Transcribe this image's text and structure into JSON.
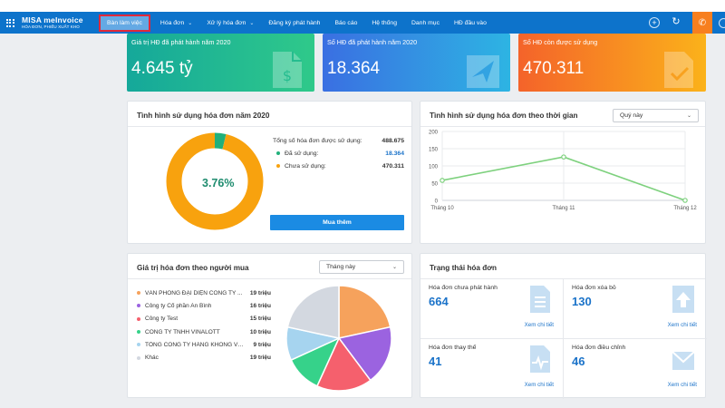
{
  "brand": {
    "name": "MISA meInvoice",
    "tagline": "HÓA ĐƠN, PHIẾU XUẤT KHO"
  },
  "nav": {
    "items": [
      {
        "label": "Bàn làm việc",
        "active": true,
        "dropdown": false
      },
      {
        "label": "Hóa đơn",
        "dropdown": true
      },
      {
        "label": "Xử lý hóa đơn",
        "dropdown": true
      },
      {
        "label": "Đăng ký phát hành",
        "dropdown": false
      },
      {
        "label": "Báo cáo",
        "dropdown": false
      },
      {
        "label": "Hệ thống",
        "dropdown": false
      },
      {
        "label": "Danh mục",
        "dropdown": false
      },
      {
        "label": "HĐ đầu vào",
        "dropdown": false
      }
    ],
    "right_icons": [
      "plus-circle-icon",
      "refresh-icon",
      "phone-icon",
      "clock-icon"
    ]
  },
  "stat_cards": [
    {
      "label": "Giá trị HĐ đã phát hành năm 2020",
      "value": "4.645 tỷ",
      "icon": "invoice-money-icon",
      "color": "#15a89a"
    },
    {
      "label": "Số HĐ đã phát hành năm 2020",
      "value": "18.364",
      "icon": "send-icon",
      "color": "#3a6fe2"
    },
    {
      "label": "Số HĐ còn được sử dụng",
      "value": "470.311",
      "icon": "document-check-icon",
      "color": "#f4632a"
    }
  ],
  "usage_panel": {
    "title": "Tình hình sử dụng hóa đơn năm 2020",
    "percent_label": "3.76%",
    "total_label": "Tổng số hóa đơn được sử dụng:",
    "total_value": "488.675",
    "used_label": "Đã sử dụng:",
    "used_value": "18.364",
    "unused_label": "Chưa sử dụng:",
    "unused_value": "470.311",
    "buy_button": "Mua thêm",
    "colors": {
      "used": "#21b07b",
      "unused": "#f8a20e"
    }
  },
  "time_panel": {
    "title": "Tình hình sử dụng hóa đơn theo thời gian",
    "period": "Quý này"
  },
  "buyer_panel": {
    "title": "Giá trị hóa đơn theo người mua",
    "period": "Tháng này"
  },
  "status_panel": {
    "title": "Trạng thái hóa đơn",
    "cells": [
      {
        "label": "Hóa đơn chưa phát hành",
        "value": "664",
        "link": "Xem chi tiết",
        "icon": "document-lines-icon"
      },
      {
        "label": "Hóa đơn xóa bỏ",
        "value": "130",
        "link": "Xem chi tiết",
        "icon": "upload-arrow-icon"
      },
      {
        "label": "Hóa đơn thay thế",
        "value": "41",
        "link": "Xem chi tiết",
        "icon": "document-pulse-icon"
      },
      {
        "label": "Hóa đơn điều chỉnh",
        "value": "46",
        "link": "Xem chi tiết",
        "icon": "envelope-icon"
      }
    ]
  },
  "chart_data": [
    {
      "type": "pie",
      "title": "",
      "categories": [
        "Đã sử dụng",
        "Chưa sử dụng"
      ],
      "values": [
        18364,
        470311
      ],
      "colors": [
        "#21b07b",
        "#f8a20e"
      ]
    },
    {
      "type": "line",
      "title": "",
      "categories": [
        "Tháng 10",
        "Tháng 11",
        "Tháng 12"
      ],
      "series": [
        {
          "values": [
            58,
            126,
            0
          ],
          "color": "#7ed17e"
        }
      ],
      "ylim": [
        0,
        200
      ],
      "yticks": [
        0,
        50,
        100,
        150,
        200
      ],
      "grid": true
    },
    {
      "type": "pie",
      "title": "",
      "categories": [
        "VĂN PHÒNG ĐẠI DIỆN CÔNG TY ...",
        "Công ty Cổ phần An Bình",
        "Công ty Test",
        "CÔNG TY TNHH VINALOTT",
        "TỔNG CÔNG TY HÀNG KHÔNG VIỆ...",
        "Khác"
      ],
      "amounts": [
        "19 triệu",
        "16 triệu",
        "15 triệu",
        "10 triệu",
        "9 triệu",
        "19 triệu"
      ],
      "values": [
        19,
        16,
        15,
        10,
        9,
        19
      ],
      "colors": [
        "#f6a25c",
        "#9b63e0",
        "#f5606d",
        "#36d28a",
        "#a6d4ef",
        "#d3d8e0"
      ]
    }
  ]
}
